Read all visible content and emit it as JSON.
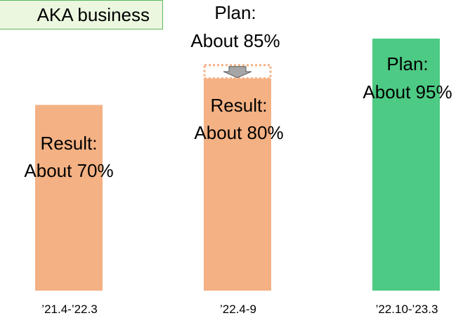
{
  "header_tag": "AKA business",
  "colors": {
    "result_bar": "#f4b183",
    "plan_bar": "#4dca84",
    "plan_outline": "#f4b183",
    "arrow_fill": "#a6a6a6",
    "arrow_stroke": "#595959",
    "tag_fill": "#ebf7df",
    "tag_border": "#5cb85c"
  },
  "chart_data": {
    "type": "bar",
    "title": "",
    "xlabel": "",
    "ylabel": "",
    "ylim": [
      0,
      100
    ],
    "categories": [
      "’21.4-’22.3",
      "’22.4-9",
      "’22.10-’23.3"
    ],
    "series": [
      {
        "name": "",
        "values": [
          70,
          80,
          95
        ],
        "kinds": [
          "result",
          "result",
          "plan"
        ]
      }
    ],
    "plan_outline": {
      "category_index": 1,
      "value": 85
    },
    "annotations": [
      {
        "category_index": 0,
        "lines": [
          "Result:",
          "About 70%"
        ]
      },
      {
        "category_index": 1,
        "lines": [
          "Plan:",
          "About 85%"
        ]
      },
      {
        "category_index": 1,
        "lines": [
          "Result:",
          "About 80%"
        ]
      },
      {
        "category_index": 2,
        "lines": [
          "Plan:",
          "About 95%"
        ]
      }
    ]
  }
}
